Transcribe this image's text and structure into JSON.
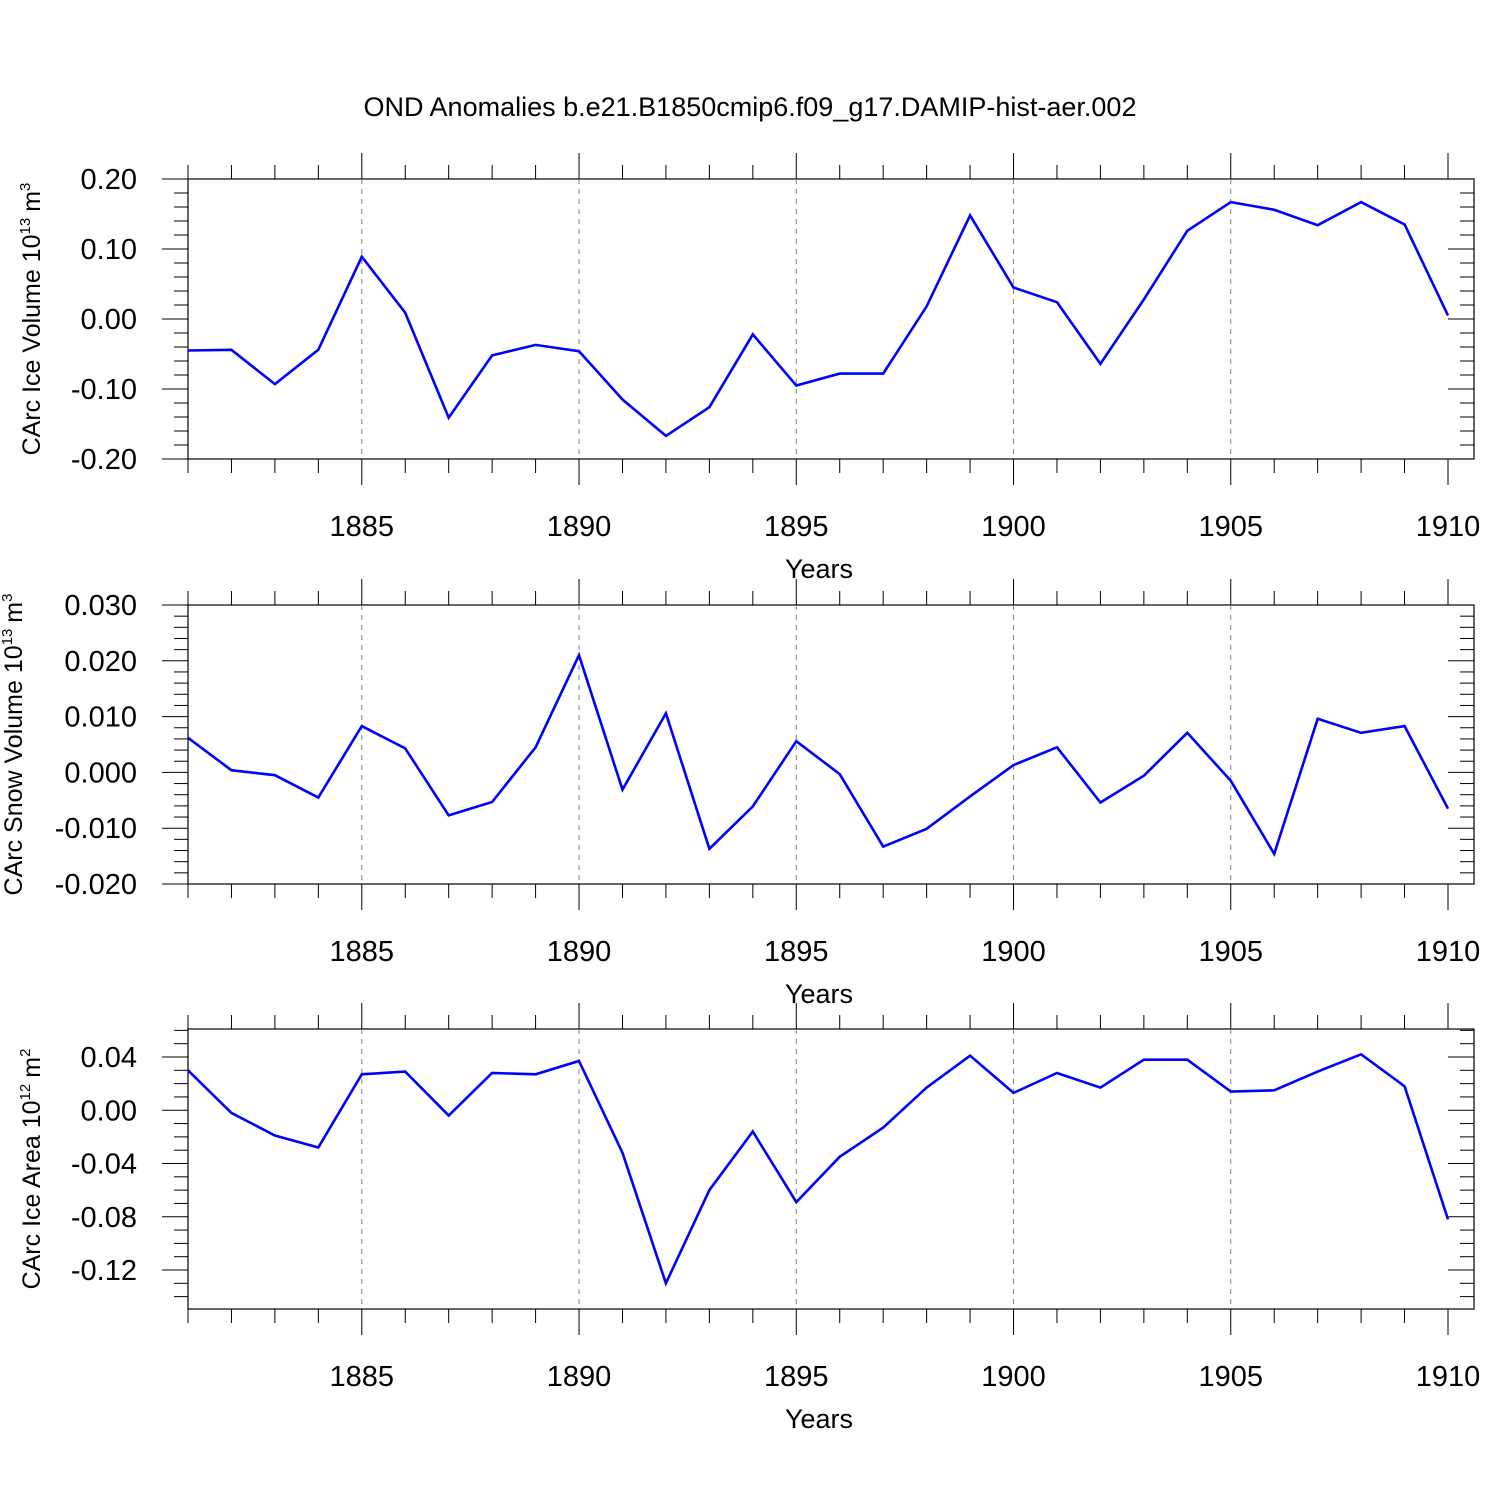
{
  "title": "OND Anomalies b.e21.B1850cmip6.f09_g17.DAMIP-hist-aer.002",
  "colors": {
    "line": "#0000ff",
    "axis": "#000000",
    "grid": "#808080"
  },
  "chart_data": [
    {
      "type": "line",
      "title": "OND Anomalies b.e21.B1850cmip6.f09_g17.DAMIP-hist-aer.002",
      "ylabel": "CArc Ice Volume 10",
      "ylabel_exp": "13",
      "ylabel_unit": "m",
      "ylabel_unit_exp": "3",
      "xlabel": "Years",
      "xlim": [
        1881,
        1910
      ],
      "ylim": [
        -0.2,
        0.2
      ],
      "yticks": [
        -0.2,
        -0.1,
        0.0,
        0.1,
        0.2
      ],
      "ytick_labels": [
        "-0.20",
        "-0.10",
        "0.00",
        "0.10",
        "0.20"
      ],
      "yminor_step": 0.02,
      "xticks": [
        1885,
        1890,
        1895,
        1900,
        1905,
        1910
      ],
      "xtick_labels": [
        "1885",
        "1890",
        "1895",
        "1900",
        "1905",
        "1910"
      ],
      "grid": "vertical dashed at major x ticks",
      "x": [
        1881,
        1882,
        1883,
        1884,
        1885,
        1886,
        1887,
        1888,
        1889,
        1890,
        1891,
        1892,
        1893,
        1894,
        1895,
        1896,
        1897,
        1898,
        1899,
        1900,
        1901,
        1902,
        1903,
        1904,
        1905,
        1906,
        1907,
        1908,
        1909,
        1910
      ],
      "values": [
        -0.045,
        -0.044,
        -0.093,
        -0.044,
        0.089,
        0.009,
        -0.141,
        -0.052,
        -0.037,
        -0.046,
        -0.115,
        -0.167,
        -0.126,
        -0.022,
        -0.095,
        -0.078,
        -0.078,
        0.018,
        0.148,
        0.045,
        0.024,
        -0.064,
        0.028,
        0.126,
        0.167,
        0.156,
        0.134,
        0.167,
        0.135,
        0.005
      ]
    },
    {
      "type": "line",
      "ylabel": "CArc Snow Volume 10",
      "ylabel_exp": "13",
      "ylabel_unit": "m",
      "ylabel_unit_exp": "3",
      "xlabel": "Years",
      "xlim": [
        1881,
        1910
      ],
      "ylim": [
        -0.02,
        0.03
      ],
      "yticks": [
        -0.02,
        -0.01,
        0.0,
        0.01,
        0.02,
        0.03
      ],
      "ytick_labels": [
        "-0.020",
        "-0.010",
        "0.000",
        "0.010",
        "0.020",
        "0.030"
      ],
      "yminor_step": 0.002,
      "xticks": [
        1885,
        1890,
        1895,
        1900,
        1905,
        1910
      ],
      "xtick_labels": [
        "1885",
        "1890",
        "1895",
        "1900",
        "1905",
        "1910"
      ],
      "grid": "vertical dashed at major x ticks",
      "x": [
        1881,
        1882,
        1883,
        1884,
        1885,
        1886,
        1887,
        1888,
        1889,
        1890,
        1891,
        1892,
        1893,
        1894,
        1895,
        1896,
        1897,
        1898,
        1899,
        1900,
        1901,
        1902,
        1903,
        1904,
        1905,
        1906,
        1907,
        1908,
        1909,
        1910
      ],
      "values": [
        0.0062,
        0.0004,
        -0.0005,
        -0.0045,
        0.0083,
        0.0043,
        -0.0077,
        -0.0053,
        0.0045,
        0.021,
        -0.0031,
        0.0106,
        -0.0137,
        -0.0061,
        0.0056,
        -0.0003,
        -0.0133,
        -0.0101,
        -0.0043,
        0.0013,
        0.0045,
        -0.0054,
        -0.0006,
        0.0071,
        -0.0015,
        -0.0146,
        0.0096,
        0.0071,
        0.0083,
        -0.0065
      ]
    },
    {
      "type": "line",
      "ylabel": "CArc Ice Area 10",
      "ylabel_exp": "12",
      "ylabel_unit": "m",
      "ylabel_unit_exp": "2",
      "xlabel": "Years",
      "xlim": [
        1881,
        1910
      ],
      "ylim": [
        -0.15,
        0.06
      ],
      "yticks": [
        -0.12,
        -0.08,
        -0.04,
        0.0,
        0.04
      ],
      "ytick_labels": [
        "-0.12",
        "-0.08",
        "-0.04",
        "0.00",
        "0.04"
      ],
      "yminor_step": 0.01,
      "xticks": [
        1885,
        1890,
        1895,
        1900,
        1905,
        1910
      ],
      "xtick_labels": [
        "1885",
        "1890",
        "1895",
        "1900",
        "1905",
        "1910"
      ],
      "grid": "vertical dashed at major x ticks",
      "x": [
        1881,
        1882,
        1883,
        1884,
        1885,
        1886,
        1887,
        1888,
        1889,
        1890,
        1891,
        1892,
        1893,
        1894,
        1895,
        1896,
        1897,
        1898,
        1899,
        1900,
        1901,
        1902,
        1903,
        1904,
        1905,
        1906,
        1907,
        1908,
        1909,
        1910
      ],
      "values": [
        0.03,
        -0.002,
        -0.019,
        -0.028,
        0.027,
        0.029,
        -0.004,
        0.028,
        0.027,
        0.037,
        -0.032,
        -0.13,
        -0.06,
        -0.016,
        -0.069,
        -0.035,
        -0.013,
        0.017,
        0.041,
        0.013,
        0.028,
        0.017,
        0.038,
        0.038,
        0.014,
        0.015,
        0.029,
        0.042,
        0.018,
        -0.082
      ]
    }
  ]
}
